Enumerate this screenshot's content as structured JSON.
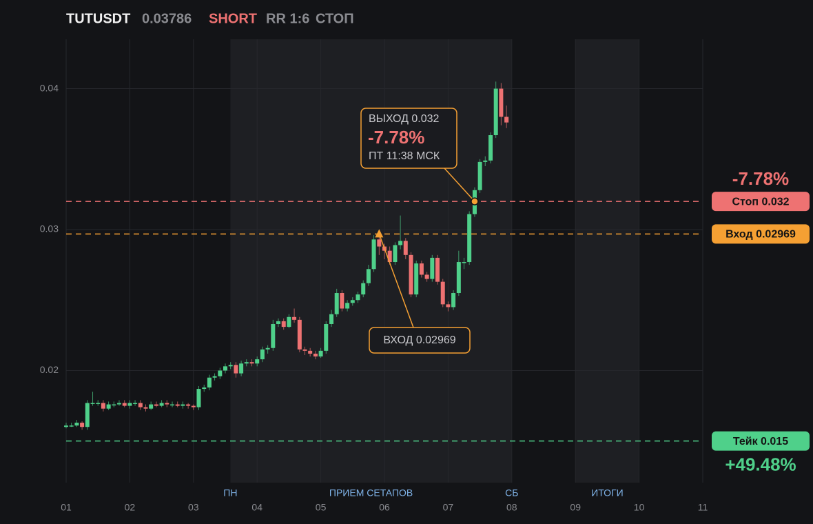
{
  "chart_data": {
    "type": "candlestick",
    "header": {
      "symbol": "TUTUSDT",
      "price": "0.03786",
      "side": "SHORT",
      "rr": "RR 1:6",
      "status": "СТОП"
    },
    "x": [
      1,
      1.083,
      1.167,
      1.25,
      1.333,
      1.417,
      1.5,
      1.583,
      1.667,
      1.75,
      1.833,
      1.917,
      2,
      2.083,
      2.167,
      2.25,
      2.333,
      2.417,
      2.5,
      2.583,
      2.667,
      2.75,
      2.833,
      2.917,
      3,
      3.083,
      3.167,
      3.25,
      3.333,
      3.417,
      3.5,
      3.583,
      3.667,
      3.75,
      3.833,
      3.917,
      4,
      4.083,
      4.167,
      4.25,
      4.333,
      4.417,
      4.5,
      4.583,
      4.667,
      4.75,
      4.833,
      4.917,
      5,
      5.083,
      5.167,
      5.25,
      5.333,
      5.417,
      5.5,
      5.583,
      5.667,
      5.75,
      5.833,
      5.917,
      6,
      6.083,
      6.167,
      6.25,
      6.333,
      6.417,
      6.5,
      6.583,
      6.667,
      6.75,
      6.833,
      6.917,
      7,
      7.083,
      7.167,
      7.25,
      7.333,
      7.417,
      7.5,
      7.583,
      7.667,
      7.75,
      7.833,
      7.917
    ],
    "open": [
      0.016,
      0.0161,
      0.0161,
      0.0163,
      0.016,
      0.0177,
      0.0177,
      0.0177,
      0.0173,
      0.0176,
      0.0176,
      0.0177,
      0.0175,
      0.0177,
      0.0177,
      0.0174,
      0.0173,
      0.0176,
      0.0175,
      0.0177,
      0.0176,
      0.0176,
      0.0175,
      0.0176,
      0.0175,
      0.0174,
      0.0187,
      0.0188,
      0.0195,
      0.0196,
      0.02,
      0.0203,
      0.0204,
      0.0198,
      0.0205,
      0.0206,
      0.0205,
      0.0208,
      0.0215,
      0.0216,
      0.0233,
      0.0235,
      0.0231,
      0.0238,
      0.0236,
      0.0215,
      0.0214,
      0.0212,
      0.021,
      0.0214,
      0.0233,
      0.024,
      0.0255,
      0.0244,
      0.0248,
      0.025,
      0.0254,
      0.0262,
      0.0272,
      0.0293,
      0.0288,
      0.0285,
      0.0277,
      0.0289,
      0.0292,
      0.0282,
      0.0254,
      0.0276,
      0.0268,
      0.0265,
      0.028,
      0.0263,
      0.0247,
      0.0245,
      0.0255,
      0.0277,
      0.0277,
      0.0311,
      0.0328,
      0.0348,
      0.0349,
      0.0367,
      0.04,
      0.038
    ],
    "high": [
      0.0163,
      0.0163,
      0.0165,
      0.0164,
      0.0179,
      0.0185,
      0.0179,
      0.0179,
      0.0178,
      0.0178,
      0.0179,
      0.0179,
      0.0179,
      0.0179,
      0.0179,
      0.0176,
      0.0178,
      0.0178,
      0.0179,
      0.0179,
      0.0178,
      0.0178,
      0.0178,
      0.0177,
      0.0176,
      0.0189,
      0.019,
      0.0197,
      0.0198,
      0.0202,
      0.0205,
      0.0206,
      0.0206,
      0.0207,
      0.0208,
      0.0208,
      0.021,
      0.0217,
      0.0218,
      0.0236,
      0.0237,
      0.0237,
      0.024,
      0.0244,
      0.0238,
      0.0217,
      0.0216,
      0.0214,
      0.0216,
      0.0235,
      0.0243,
      0.0258,
      0.0257,
      0.025,
      0.0252,
      0.0256,
      0.0264,
      0.0275,
      0.0296,
      0.0295,
      0.029,
      0.0288,
      0.0291,
      0.031,
      0.0294,
      0.0284,
      0.0278,
      0.0278,
      0.027,
      0.0282,
      0.0282,
      0.0265,
      0.0249,
      0.0257,
      0.0285,
      0.028,
      0.0313,
      0.033,
      0.035,
      0.0352,
      0.0369,
      0.0405,
      0.0404,
      0.0388
    ],
    "low": [
      0.0159,
      0.016,
      0.016,
      0.0158,
      0.0158,
      0.0175,
      0.0175,
      0.0171,
      0.0172,
      0.0174,
      0.0175,
      0.0174,
      0.0173,
      0.0175,
      0.0172,
      0.0171,
      0.0172,
      0.0174,
      0.0174,
      0.0174,
      0.0174,
      0.0174,
      0.0173,
      0.0173,
      0.0172,
      0.0172,
      0.0185,
      0.0186,
      0.0193,
      0.0194,
      0.0198,
      0.0201,
      0.0195,
      0.0196,
      0.0203,
      0.0203,
      0.0203,
      0.0206,
      0.0212,
      0.0214,
      0.0231,
      0.0229,
      0.023,
      0.0234,
      0.0213,
      0.0211,
      0.021,
      0.0208,
      0.0209,
      0.0212,
      0.0231,
      0.0238,
      0.0242,
      0.0242,
      0.0246,
      0.0248,
      0.0252,
      0.026,
      0.027,
      0.0282,
      0.0279,
      0.0275,
      0.0275,
      0.0286,
      0.0279,
      0.0252,
      0.0252,
      0.0266,
      0.0263,
      0.0263,
      0.0261,
      0.0245,
      0.0242,
      0.0243,
      0.0253,
      0.0272,
      0.0275,
      0.0309,
      0.0326,
      0.0345,
      0.0347,
      0.0365,
      0.0374,
      0.0372
    ],
    "close": [
      0.0161,
      0.0161,
      0.0163,
      0.016,
      0.0177,
      0.0177,
      0.0177,
      0.0173,
      0.0176,
      0.0176,
      0.0177,
      0.0175,
      0.0177,
      0.0177,
      0.0174,
      0.0173,
      0.0176,
      0.0175,
      0.0177,
      0.0176,
      0.0176,
      0.0175,
      0.0176,
      0.0175,
      0.0174,
      0.0187,
      0.0188,
      0.0195,
      0.0196,
      0.02,
      0.0203,
      0.0204,
      0.0198,
      0.0205,
      0.0206,
      0.0205,
      0.0208,
      0.0215,
      0.0216,
      0.0233,
      0.0235,
      0.0231,
      0.0238,
      0.0236,
      0.0215,
      0.0214,
      0.0212,
      0.021,
      0.0214,
      0.0233,
      0.024,
      0.0255,
      0.0244,
      0.0248,
      0.025,
      0.0254,
      0.0262,
      0.0272,
      0.0293,
      0.0288,
      0.0285,
      0.0277,
      0.0289,
      0.0292,
      0.0282,
      0.0254,
      0.0276,
      0.0268,
      0.0265,
      0.028,
      0.0263,
      0.0247,
      0.0245,
      0.0255,
      0.0277,
      0.0277,
      0.0311,
      0.0328,
      0.0348,
      0.0349,
      0.0367,
      0.04,
      0.038,
      0.0376
    ],
    "up_color": "#4fd08a",
    "down_color": "#ee7272",
    "xlim": [
      1,
      11
    ],
    "ylim": [
      0.01205,
      0.0435
    ],
    "xticks": [
      {
        "value": 1,
        "label": "01"
      },
      {
        "value": 2,
        "label": "02"
      },
      {
        "value": 3,
        "label": "03"
      },
      {
        "value": 4,
        "label": "04"
      },
      {
        "value": 5,
        "label": "05"
      },
      {
        "value": 6,
        "label": "06"
      },
      {
        "value": 7,
        "label": "07"
      },
      {
        "value": 8,
        "label": "08"
      },
      {
        "value": 9,
        "label": "09"
      },
      {
        "value": 10,
        "label": "10"
      },
      {
        "value": 11,
        "label": "11"
      }
    ],
    "yticks": [
      0.02,
      0.03,
      0.04
    ],
    "grid": true,
    "regions": [
      {
        "from": 3.58,
        "to": 8
      },
      {
        "from": 9,
        "to": 10
      }
    ],
    "region_labels": [
      {
        "text": "ПН",
        "x": 3.58
      },
      {
        "text": "ПРИЕМ СЕТАПОВ",
        "x": 5.79
      },
      {
        "text": "СБ",
        "x": 8
      },
      {
        "text": "ИТОГИ",
        "x": 9.5
      }
    ],
    "levels": [
      {
        "value": 0.032,
        "label": "Стоп 0.032",
        "color": "#ee7272",
        "pct": "-7.78%"
      },
      {
        "value": 0.02969,
        "label": "Вход 0.02969",
        "color": "#f5a033"
      },
      {
        "value": 0.015,
        "label": "Тейк 0.015",
        "color": "#4fd08a",
        "pct": "+49.48%"
      }
    ],
    "entry": {
      "x": 5.917,
      "y": 0.02969,
      "label": "ВХОД 0.02969"
    },
    "exit": {
      "x": 7.417,
      "y": 0.032,
      "label": "ВЫХОД 0.032",
      "pct": "-7.78%",
      "time": "ПТ 11:38 МСК"
    }
  }
}
